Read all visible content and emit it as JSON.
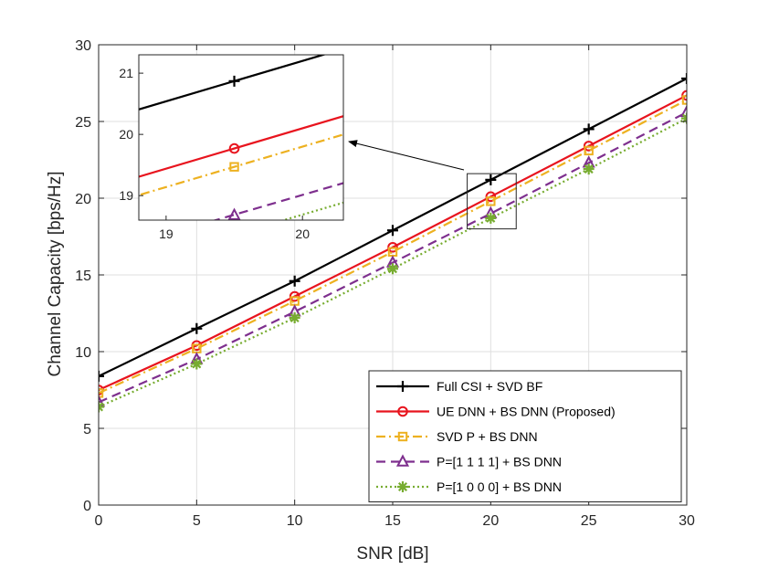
{
  "chart_data": {
    "type": "line",
    "xlabel": "SNR [dB]",
    "ylabel": "Channel Capacity [bps/Hz]",
    "xlim": [
      0,
      30
    ],
    "ylim": [
      0,
      30
    ],
    "xticks": [
      0,
      5,
      10,
      15,
      20,
      25,
      30
    ],
    "yticks": [
      0,
      5,
      10,
      15,
      20,
      25,
      30
    ],
    "grid": true,
    "legend_position": "bottom-right",
    "x": [
      0,
      5,
      10,
      15,
      20,
      25,
      30
    ],
    "series": [
      {
        "name": "Full CSI + SVD BF",
        "color": "#000000",
        "dash": "solid",
        "marker": "plus",
        "values": [
          8.4,
          11.5,
          14.6,
          17.9,
          21.2,
          24.5,
          27.8
        ]
      },
      {
        "name": "UE DNN + BS DNN (Proposed)",
        "color": "#e8141e",
        "dash": "solid",
        "marker": "circle",
        "values": [
          7.5,
          10.4,
          13.6,
          16.8,
          20.1,
          23.4,
          26.7
        ]
      },
      {
        "name": "SVD P + BS DNN",
        "color": "#edb120",
        "dash": "dashdot",
        "marker": "square",
        "values": [
          7.3,
          10.2,
          13.3,
          16.5,
          19.8,
          23.1,
          26.4
        ]
      },
      {
        "name": "P=[1 1 1 1] + BS DNN",
        "color": "#7e2f8e",
        "dash": "dashed",
        "marker": "triangle",
        "values": [
          6.7,
          9.5,
          12.6,
          15.8,
          19.0,
          22.3,
          25.6
        ]
      },
      {
        "name": "P=[1 0 0 0] + BS DNN",
        "color": "#77ac30",
        "dash": "dotted",
        "marker": "asterisk",
        "values": [
          6.4,
          9.2,
          12.2,
          15.4,
          18.7,
          21.9,
          25.2
        ]
      }
    ],
    "inset": {
      "xlim": [
        18.8,
        20.3
      ],
      "ylim": [
        18.6,
        21.3
      ],
      "xticks": [
        19,
        20
      ],
      "yticks": [
        19,
        20,
        21
      ],
      "zoom_region": {
        "x": [
          18.8,
          21.3
        ],
        "y": [
          18.0,
          21.6
        ]
      }
    }
  }
}
